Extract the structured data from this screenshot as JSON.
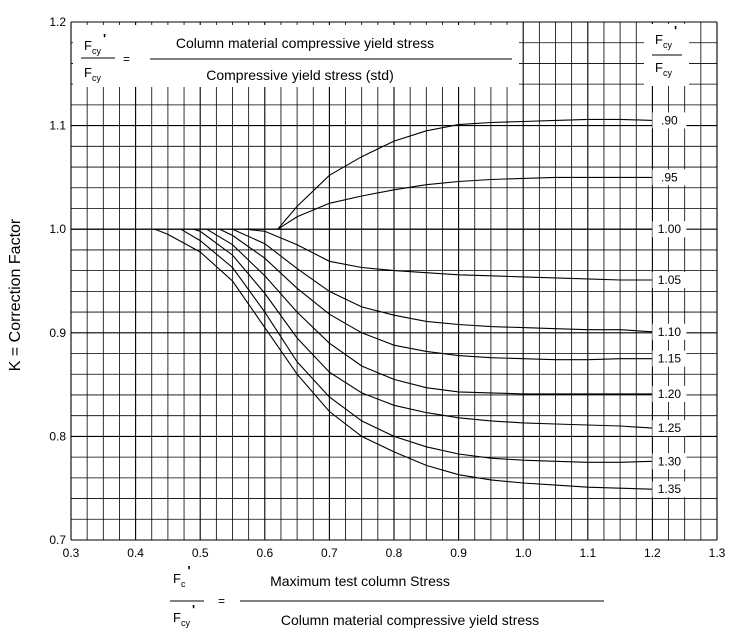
{
  "chart_data": {
    "type": "line",
    "title": "",
    "ylabel": "K = Correction Factor",
    "xlim": [
      0.3,
      1.3
    ],
    "ylim": [
      0.7,
      1.2
    ],
    "x_ticks": [
      "0.3",
      "0.4",
      "0.5",
      "0.6",
      "0.7",
      "0.8",
      "0.9",
      "1.0",
      "1.1",
      "1.2",
      "1.3"
    ],
    "y_ticks": [
      "0.7",
      "0.8",
      "0.9",
      "1.0",
      "1.1",
      "1.2"
    ],
    "grid": true,
    "legend_header": {
      "numerator": "F",
      "numerator_sub": "cy",
      "prime": "'",
      "denominator": "F",
      "denominator_sub": "cy"
    },
    "series": [
      {
        "name": ".90",
        "x": [
          0.62,
          0.65,
          0.7,
          0.75,
          0.8,
          0.85,
          0.9,
          0.95,
          1.0,
          1.05,
          1.1,
          1.15,
          1.2
        ],
        "y": [
          1.0,
          1.022,
          1.052,
          1.07,
          1.085,
          1.095,
          1.101,
          1.103,
          1.104,
          1.105,
          1.106,
          1.106,
          1.105
        ]
      },
      {
        "name": ".95",
        "x": [
          0.62,
          0.65,
          0.7,
          0.75,
          0.8,
          0.85,
          0.9,
          0.95,
          1.0,
          1.05,
          1.1,
          1.15,
          1.2
        ],
        "y": [
          1.0,
          1.012,
          1.025,
          1.032,
          1.038,
          1.043,
          1.046,
          1.048,
          1.049,
          1.05,
          1.05,
          1.05,
          1.05
        ]
      },
      {
        "name": "1.00",
        "x": [
          0.3,
          0.62,
          1.2
        ],
        "y": [
          1.0,
          1.0,
          1.0
        ]
      },
      {
        "name": "1.05",
        "x": [
          0.57,
          0.6,
          0.65,
          0.7,
          0.75,
          0.8,
          0.85,
          0.9,
          0.95,
          1.0,
          1.05,
          1.1,
          1.15,
          1.2
        ],
        "y": [
          1.0,
          0.998,
          0.985,
          0.969,
          0.963,
          0.96,
          0.958,
          0.956,
          0.955,
          0.954,
          0.953,
          0.952,
          0.951,
          0.951
        ]
      },
      {
        "name": "1.10",
        "x": [
          0.55,
          0.6,
          0.65,
          0.7,
          0.75,
          0.8,
          0.85,
          0.9,
          0.95,
          1.0,
          1.05,
          1.1,
          1.15,
          1.2
        ],
        "y": [
          1.0,
          0.986,
          0.962,
          0.94,
          0.925,
          0.917,
          0.911,
          0.908,
          0.906,
          0.905,
          0.904,
          0.903,
          0.903,
          0.901
        ]
      },
      {
        "name": "1.15",
        "x": [
          0.53,
          0.55,
          0.6,
          0.65,
          0.7,
          0.75,
          0.8,
          0.85,
          0.9,
          0.95,
          1.0,
          1.05,
          1.1,
          1.15,
          1.2
        ],
        "y": [
          1.0,
          0.994,
          0.972,
          0.943,
          0.918,
          0.9,
          0.888,
          0.882,
          0.878,
          0.876,
          0.875,
          0.874,
          0.874,
          0.875,
          0.875
        ]
      },
      {
        "name": "1.20",
        "x": [
          0.51,
          0.55,
          0.6,
          0.65,
          0.7,
          0.75,
          0.8,
          0.85,
          0.9,
          0.95,
          1.0,
          1.05,
          1.1,
          1.15,
          1.2
        ],
        "y": [
          1.0,
          0.985,
          0.955,
          0.92,
          0.89,
          0.868,
          0.855,
          0.847,
          0.843,
          0.842,
          0.841,
          0.841,
          0.841,
          0.841,
          0.841
        ]
      },
      {
        "name": "1.25",
        "x": [
          0.49,
          0.5,
          0.55,
          0.6,
          0.65,
          0.7,
          0.75,
          0.8,
          0.85,
          0.9,
          0.95,
          1.0,
          1.05,
          1.1,
          1.15,
          1.2
        ],
        "y": [
          1.0,
          0.998,
          0.975,
          0.938,
          0.895,
          0.862,
          0.842,
          0.83,
          0.823,
          0.818,
          0.815,
          0.813,
          0.812,
          0.811,
          0.81,
          0.808
        ]
      },
      {
        "name": "1.30",
        "x": [
          0.47,
          0.5,
          0.55,
          0.6,
          0.65,
          0.7,
          0.75,
          0.8,
          0.85,
          0.9,
          0.95,
          1.0,
          1.05,
          1.1,
          1.15,
          1.2
        ],
        "y": [
          1.0,
          0.989,
          0.963,
          0.92,
          0.872,
          0.838,
          0.815,
          0.8,
          0.79,
          0.783,
          0.779,
          0.777,
          0.776,
          0.775,
          0.775,
          0.776
        ]
      },
      {
        "name": "1.35",
        "x": [
          0.43,
          0.45,
          0.5,
          0.55,
          0.6,
          0.65,
          0.7,
          0.75,
          0.8,
          0.85,
          0.9,
          0.95,
          1.0,
          1.05,
          1.1,
          1.15,
          1.2
        ],
        "y": [
          1.0,
          0.995,
          0.978,
          0.95,
          0.905,
          0.86,
          0.824,
          0.8,
          0.785,
          0.772,
          0.763,
          0.758,
          0.755,
          0.753,
          0.751,
          0.75,
          0.749
        ]
      }
    ]
  },
  "equations": {
    "top": {
      "numerator": "Column material compressive yield stress",
      "denominator": "Compressive yield stress (std)",
      "lhs_top_var": "F",
      "lhs_top_sub": "cy",
      "lhs_top_prime": "'",
      "lhs_bottom_var": "F",
      "lhs_bottom_sub": "cy",
      "equals": "="
    },
    "bottom": {
      "numerator": "Maximum test column Stress",
      "denominator": "Column material compressive yield stress",
      "lhs_top_var": "F",
      "lhs_top_sub": "c",
      "lhs_top_prime": "'",
      "lhs_bottom_var": "F",
      "lhs_bottom_sub": "cy",
      "lhs_bottom_prime": "'",
      "equals": "="
    }
  }
}
